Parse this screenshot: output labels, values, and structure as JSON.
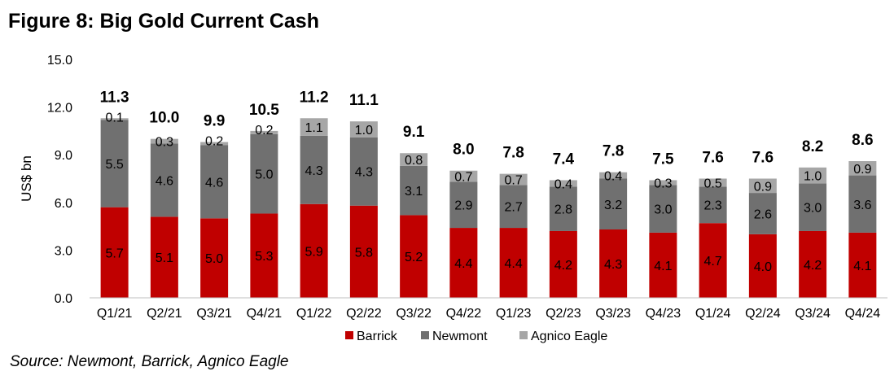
{
  "title": "Figure 8: Big Gold Current Cash",
  "source": "Source: Newmont, Barrick, Agnico Eagle",
  "chart_data": {
    "type": "bar",
    "stacked": true,
    "categories": [
      "Q1/21",
      "Q2/21",
      "Q3/21",
      "Q4/21",
      "Q1/22",
      "Q2/22",
      "Q3/22",
      "Q4/22",
      "Q1/23",
      "Q2/23",
      "Q3/23",
      "Q4/23",
      "Q1/24",
      "Q2/24",
      "Q3/24",
      "Q4/24"
    ],
    "series": [
      {
        "name": "Barrick",
        "color": "#c00000",
        "values": [
          5.7,
          5.1,
          5.0,
          5.3,
          5.9,
          5.8,
          5.2,
          4.4,
          4.4,
          4.2,
          4.3,
          4.1,
          4.7,
          4.0,
          4.2,
          4.1
        ]
      },
      {
        "name": "Newmont",
        "color": "#707070",
        "values": [
          5.5,
          4.6,
          4.6,
          5.0,
          4.3,
          4.3,
          3.1,
          2.9,
          2.7,
          2.8,
          3.2,
          3.0,
          2.3,
          2.6,
          3.0,
          3.6
        ]
      },
      {
        "name": "Agnico Eagle",
        "color": "#a6a6a6",
        "values": [
          0.1,
          0.3,
          0.2,
          0.2,
          1.1,
          1.0,
          0.8,
          0.7,
          0.7,
          0.4,
          0.4,
          0.3,
          0.5,
          0.9,
          1.0,
          0.9
        ]
      }
    ],
    "totals": [
      "11.3",
      "10.0",
      "9.9",
      "10.5",
      "11.2",
      "11.1",
      "9.1",
      "8.0",
      "7.8",
      "7.4",
      "7.8",
      "7.5",
      "7.6",
      "7.6",
      "8.2",
      "8.6"
    ],
    "ylabel": "US$ bn",
    "xlabel": "",
    "ylim": [
      0,
      15
    ],
    "yticks": [
      "0.0",
      "3.0",
      "6.0",
      "9.0",
      "12.0",
      "15.0"
    ],
    "grid": false,
    "legend_position": "bottom"
  }
}
